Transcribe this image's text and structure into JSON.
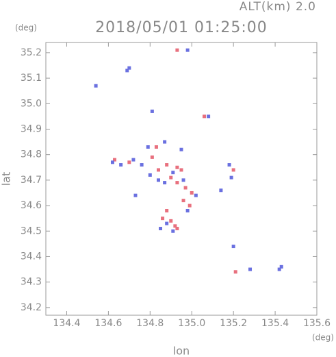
{
  "chart_data": {
    "type": "scatter",
    "title": "2018/05/01 01:25:00",
    "subtitle": "ALT(km) 2.0",
    "x_label": "lon",
    "y_label": "lat",
    "x_unit": "(deg)",
    "y_unit": "(deg)",
    "xlim": [
      134.3,
      135.6
    ],
    "ylim": [
      34.17,
      35.24
    ],
    "xticks": [
      134.4,
      134.6,
      134.8,
      {
        "value": 135,
        "label": "135.0"
      },
      135.2,
      135.4,
      135.6
    ],
    "yticks": [
      34.2,
      34.3,
      34.4,
      34.5,
      34.6,
      34.7,
      34.8,
      34.9,
      {
        "value": 35,
        "label": "35.0"
      },
      35.1,
      35.2
    ],
    "series": [
      {
        "color": "#e8707e",
        "x": [
          134.93,
          134.63,
          134.7,
          134.81,
          134.84,
          134.88,
          134.93,
          134.95,
          134.9,
          134.93,
          134.97,
          135.0,
          134.96,
          134.88,
          134.9,
          134.92,
          134.86,
          134.93,
          135.2,
          135.21,
          134.83,
          135.06,
          134.99
        ],
        "values": [
          35.21,
          34.78,
          34.77,
          34.79,
          34.74,
          34.76,
          34.75,
          34.74,
          34.71,
          34.69,
          34.67,
          34.65,
          34.62,
          34.58,
          34.54,
          34.52,
          34.55,
          34.51,
          34.74,
          34.34,
          34.83,
          34.95,
          34.6
        ]
      },
      {
        "color": "#6a70e0",
        "x": [
          134.98,
          134.69,
          134.7,
          134.54,
          134.81,
          135.08,
          134.79,
          134.95,
          134.62,
          134.66,
          134.72,
          134.76,
          134.8,
          134.84,
          134.87,
          134.91,
          134.96,
          135.02,
          134.98,
          134.85,
          134.88,
          134.91,
          135.14,
          135.18,
          135.19,
          135.42,
          135.43,
          135.2,
          135.28,
          134.73,
          134.87
        ],
        "values": [
          35.21,
          35.13,
          35.14,
          35.07,
          34.97,
          34.95,
          34.83,
          34.82,
          34.77,
          34.76,
          34.78,
          34.76,
          34.72,
          34.7,
          34.69,
          34.73,
          34.7,
          34.64,
          34.58,
          34.51,
          34.53,
          34.5,
          34.66,
          34.76,
          34.71,
          34.35,
          34.36,
          34.44,
          34.35,
          34.64,
          34.85
        ]
      }
    ]
  }
}
